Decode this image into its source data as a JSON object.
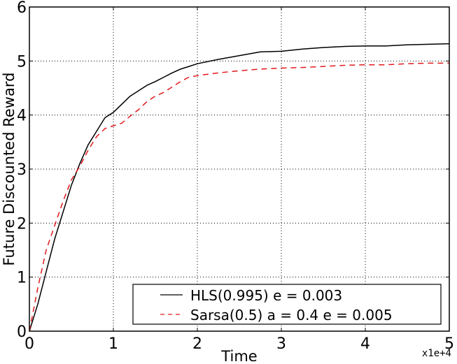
{
  "chart_data": {
    "type": "line",
    "title": "",
    "xlabel": "Time",
    "ylabel": "Future Discounted Reward",
    "x_multiplier": "x1e+4",
    "xlim": [
      0,
      5
    ],
    "ylim": [
      0,
      6
    ],
    "xticks": [
      "0",
      "1",
      "2",
      "3",
      "4",
      "5"
    ],
    "yticks": [
      "0",
      "1",
      "2",
      "3",
      "4",
      "5",
      "6"
    ],
    "grid": true,
    "legend_position": "lower right",
    "series": [
      {
        "name": "HLS(0.995) e = 0.003",
        "color": "#000000",
        "style": "solid",
        "x": [
          0,
          0.1,
          0.2,
          0.3,
          0.4,
          0.5,
          0.6,
          0.7,
          0.8,
          0.9,
          1.0,
          1.1,
          1.2,
          1.3,
          1.4,
          1.5,
          1.6,
          1.7,
          1.8,
          1.9,
          2.0,
          2.25,
          2.5,
          2.75,
          3.0,
          3.25,
          3.5,
          3.75,
          4.0,
          4.25,
          4.5,
          4.75,
          5.0
        ],
        "values": [
          0,
          0.5,
          1.1,
          1.7,
          2.2,
          2.7,
          3.1,
          3.45,
          3.7,
          3.95,
          4.05,
          4.2,
          4.35,
          4.45,
          4.55,
          4.62,
          4.7,
          4.78,
          4.85,
          4.9,
          4.95,
          5.03,
          5.1,
          5.17,
          5.18,
          5.22,
          5.25,
          5.27,
          5.28,
          5.28,
          5.3,
          5.31,
          5.32
        ]
      },
      {
        "name": "Sarsa(0.5) a = 0.4 e = 0.005",
        "color": "#e0191d",
        "style": "dashed",
        "x": [
          0,
          0.1,
          0.2,
          0.3,
          0.4,
          0.5,
          0.6,
          0.7,
          0.8,
          0.9,
          1.0,
          1.1,
          1.2,
          1.3,
          1.4,
          1.5,
          1.6,
          1.7,
          1.8,
          1.9,
          2.0,
          2.25,
          2.5,
          2.75,
          3.0,
          3.25,
          3.5,
          3.75,
          4.0,
          4.25,
          4.5,
          4.75,
          5.0
        ],
        "values": [
          0,
          0.8,
          1.5,
          1.95,
          2.4,
          2.8,
          3.05,
          3.35,
          3.6,
          3.75,
          3.8,
          3.85,
          3.98,
          4.1,
          4.25,
          4.35,
          4.42,
          4.52,
          4.62,
          4.7,
          4.73,
          4.78,
          4.82,
          4.85,
          4.87,
          4.88,
          4.9,
          4.92,
          4.93,
          4.93,
          4.95,
          4.96,
          4.96
        ]
      }
    ]
  }
}
